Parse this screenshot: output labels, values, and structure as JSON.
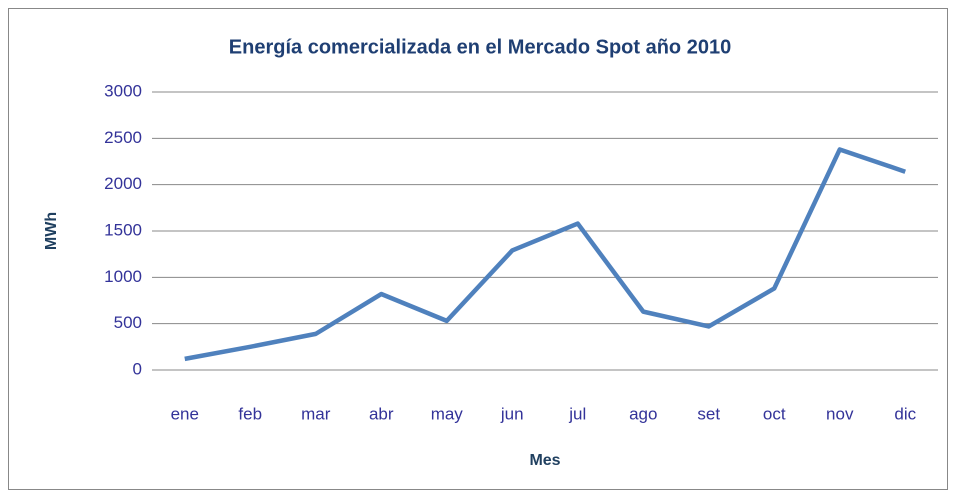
{
  "chart_data": {
    "type": "line",
    "title": "Energía comercializada en el Mercado Spot año 2010",
    "x_label": "Mes",
    "y_label": "MWh",
    "categories": [
      "ene",
      "feb",
      "mar",
      "abr",
      "may",
      "jun",
      "jul",
      "ago",
      "set",
      "oct",
      "nov",
      "dic"
    ],
    "series": [
      {
        "name": "MWh",
        "color": "#4f81bd",
        "values": [
          120,
          250,
          390,
          820,
          530,
          1290,
          1580,
          630,
          470,
          880,
          2380,
          2140
        ]
      }
    ],
    "ylim": [
      0,
      3000
    ],
    "yticks": [
      0,
      500,
      1000,
      1500,
      2000,
      2500,
      3000
    ],
    "grid": true
  }
}
